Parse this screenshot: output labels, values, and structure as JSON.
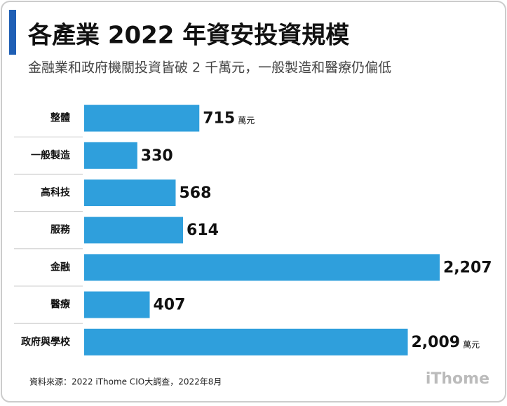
{
  "chart_data": {
    "type": "bar",
    "orientation": "horizontal",
    "title": "各產業 2022 年資安投資規模",
    "subtitle": "金融業和政府機關投資皆破 2 千萬元，一般製造和醫療仍偏低",
    "categories": [
      "整體",
      "一般製造",
      "高科技",
      "服務",
      "金融",
      "醫療",
      "政府與學校"
    ],
    "values": [
      715,
      330,
      568,
      614,
      2207,
      407,
      2009
    ],
    "value_labels": [
      "715",
      "330",
      "568",
      "614",
      "2,207",
      "407",
      "2,009"
    ],
    "unit": "萬元",
    "color": "#2f9fdc",
    "source": "資料來源：2022 iThome CIO大調查，2022年8月",
    "logo": "iThome"
  }
}
